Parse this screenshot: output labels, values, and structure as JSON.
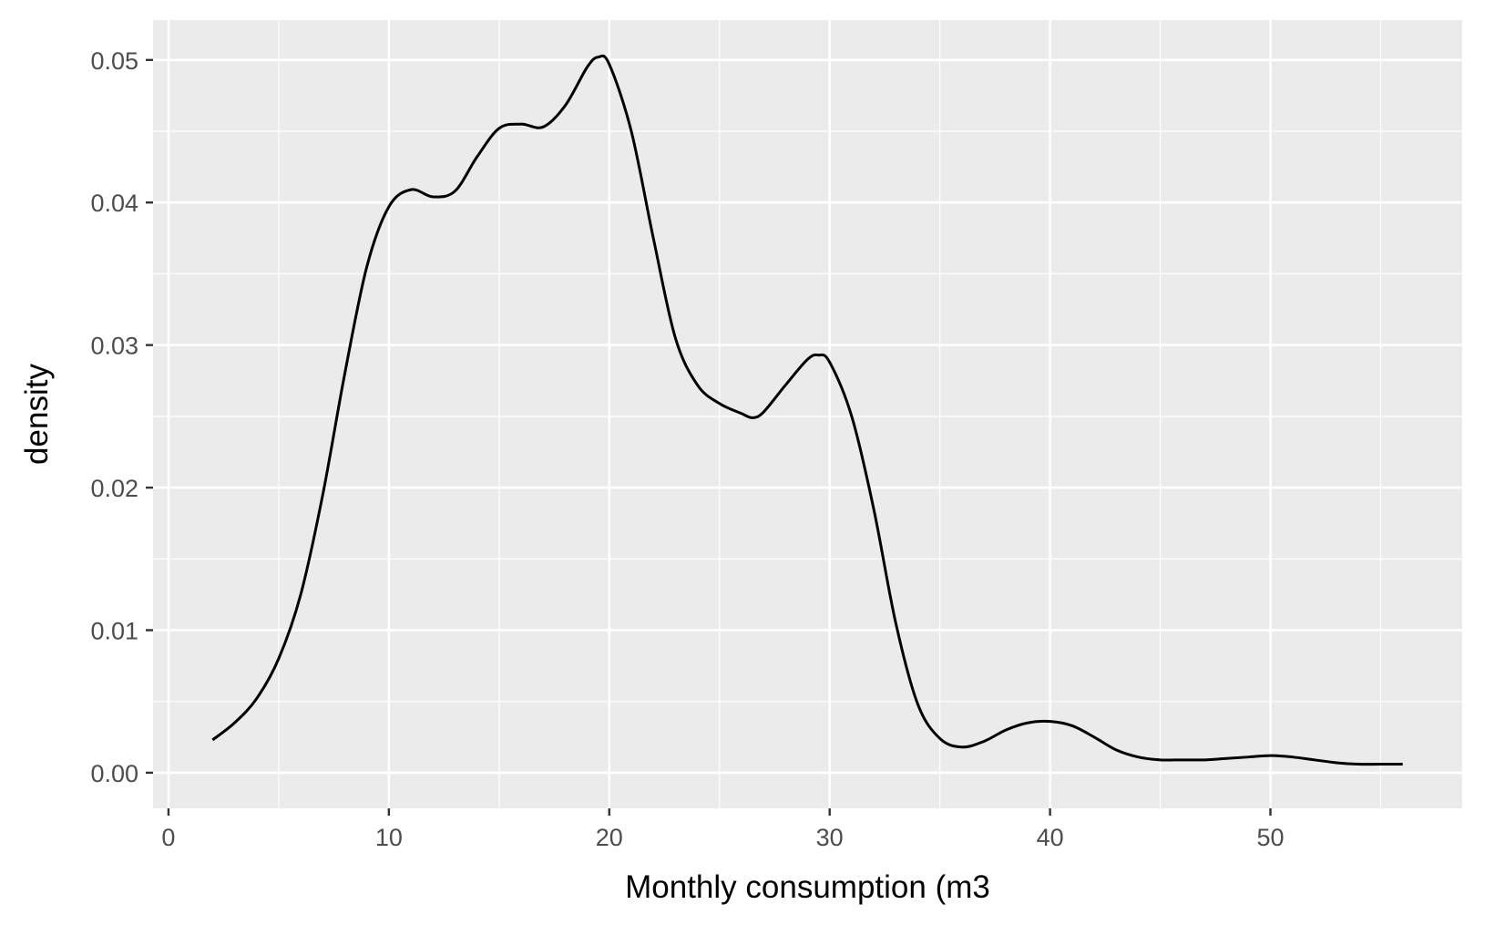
{
  "chart_data": {
    "type": "line",
    "title": "",
    "xlabel": "Monthly consumption (m3",
    "ylabel": "density",
    "xlim": [
      -0.7,
      58.7
    ],
    "ylim": [
      -0.0025,
      0.0528
    ],
    "x_ticks": [
      0,
      10,
      20,
      30,
      40,
      50
    ],
    "x_tick_labels": [
      "0",
      "10",
      "20",
      "30",
      "40",
      "50"
    ],
    "y_ticks": [
      0.0,
      0.01,
      0.02,
      0.03,
      0.04,
      0.05
    ],
    "y_tick_labels": [
      "0.00",
      "0.01",
      "0.02",
      "0.03",
      "0.04",
      "0.05"
    ],
    "grid": true,
    "legend": "none",
    "colors": {
      "panel": "#ebebeb",
      "grid": "#ffffff",
      "line": "#000000",
      "tick_text": "#4d4d4d",
      "tick_mark": "#333333"
    },
    "series": [
      {
        "x": [
          2,
          3,
          4,
          5,
          6,
          7,
          8,
          9,
          10,
          11,
          12,
          13,
          14,
          15,
          16,
          17,
          18,
          19,
          19.5,
          20,
          21,
          22,
          23,
          24,
          25,
          26,
          26.5,
          27,
          28,
          29,
          29.5,
          30,
          31,
          32,
          33,
          34,
          35,
          36,
          37,
          38,
          39,
          40,
          41,
          42,
          43,
          44,
          45,
          46,
          47,
          48,
          49,
          50,
          51,
          52,
          53,
          54,
          55,
          56
        ],
        "y": [
          0.0023,
          0.0035,
          0.0052,
          0.008,
          0.0125,
          0.0195,
          0.028,
          0.0355,
          0.0397,
          0.0409,
          0.0404,
          0.0408,
          0.0432,
          0.0452,
          0.0455,
          0.0453,
          0.0468,
          0.0495,
          0.0502,
          0.0497,
          0.045,
          0.0375,
          0.0305,
          0.0272,
          0.0259,
          0.0252,
          0.0249,
          0.0253,
          0.0272,
          0.029,
          0.0293,
          0.0288,
          0.025,
          0.0185,
          0.0105,
          0.0048,
          0.0024,
          0.0018,
          0.0022,
          0.003,
          0.0035,
          0.0036,
          0.0033,
          0.0025,
          0.0016,
          0.0011,
          0.0009,
          0.0009,
          0.0009,
          0.001,
          0.0011,
          0.0012,
          0.0011,
          0.0009,
          0.0007,
          0.0006,
          0.0006,
          0.0006
        ]
      }
    ]
  }
}
